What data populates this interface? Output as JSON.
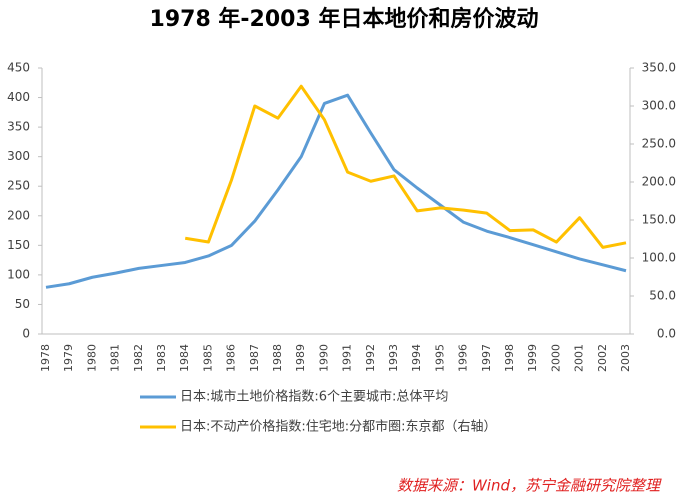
{
  "chart_data": {
    "type": "line",
    "title": "1978 年-2003 年日本地价和房价波动",
    "categories": [
      "1978",
      "1979",
      "1980",
      "1981",
      "1982",
      "1983",
      "1984",
      "1985",
      "1986",
      "1987",
      "1988",
      "1989",
      "1990",
      "1991",
      "1992",
      "1993",
      "1994",
      "1995",
      "1996",
      "1997",
      "1998",
      "1999",
      "2000",
      "2001",
      "2002",
      "2003"
    ],
    "series": [
      {
        "name": "日本:城市土地价格指数:6个主要城市:总体平均",
        "color": "#5b9bd5",
        "values": [
          79,
          85,
          96,
          103,
          111,
          116,
          121,
          132,
          150,
          191,
          244,
          300,
          390,
          404,
          340,
          278,
          247,
          218,
          189,
          174,
          163,
          151,
          139,
          127,
          117,
          107
        ]
      },
      {
        "name": "日本:不动产价格指数:住宅地:分都市圈:东京都（右轴）",
        "color": "#ffc000",
        "axis": "y2",
        "values": [
          null,
          null,
          null,
          null,
          null,
          null,
          126,
          121,
          203,
          300,
          284,
          326,
          282,
          213,
          201,
          208,
          162,
          166,
          163,
          159,
          136,
          137,
          121,
          153,
          114,
          120
        ]
      }
    ],
    "ylim": [
      0,
      450
    ],
    "yticks": [
      0,
      50,
      100,
      150,
      200,
      250,
      300,
      350,
      400,
      450
    ],
    "y2lim": [
      0,
      350
    ],
    "y2ticks": [
      {
        "value": 0,
        "label": "0.0"
      },
      {
        "value": 50,
        "label": "50.0"
      },
      {
        "value": 100,
        "label": "100.0"
      },
      {
        "value": 150,
        "label": "150.0"
      },
      {
        "value": 200,
        "label": "200.0"
      },
      {
        "value": 250,
        "label": "250.0"
      },
      {
        "value": 300,
        "label": "300.0"
      },
      {
        "value": 350,
        "label": "350.0"
      }
    ],
    "source": "数据来源：Wind，苏宁金融研究院整理"
  }
}
